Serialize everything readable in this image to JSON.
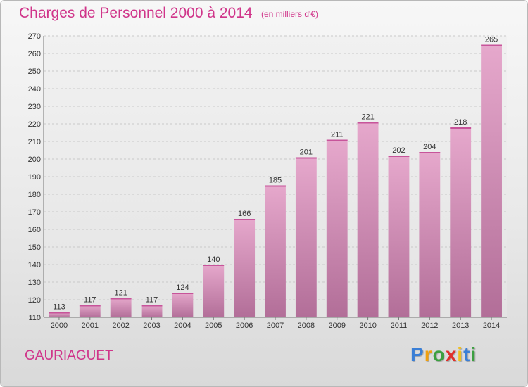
{
  "header": {
    "title": "Charges de Personnel 2000 à 2014",
    "subtitle": "(en milliers d'€)"
  },
  "footer": {
    "commune": "GAURIAGUET",
    "brand": [
      "P",
      "r",
      "o",
      "x",
      "i",
      "t",
      "i"
    ],
    "brand_colors": [
      "#3a7fd6",
      "#f0a010",
      "#3ca040",
      "#e0302a",
      "#f0c020",
      "#3a7fd6",
      "#3ca040"
    ]
  },
  "colors": {
    "bar_top": "#e6a8cc",
    "bar_bottom": "#b26e98",
    "accent": "#d0358a"
  },
  "chart_data": {
    "type": "bar",
    "categories": [
      "2000",
      "2001",
      "2002",
      "2003",
      "2004",
      "2005",
      "2006",
      "2007",
      "2008",
      "2009",
      "2010",
      "2011",
      "2012",
      "2013",
      "2014"
    ],
    "values": [
      113,
      117,
      121,
      117,
      124,
      140,
      166,
      185,
      201,
      211,
      221,
      202,
      204,
      218,
      265
    ],
    "title": "Charges de Personnel 2000 à 2014",
    "xlabel": "",
    "ylabel": "",
    "ylim": [
      110,
      270
    ],
    "yticks": [
      110,
      120,
      130,
      140,
      150,
      160,
      170,
      180,
      190,
      200,
      210,
      220,
      230,
      240,
      250,
      260,
      270
    ],
    "grid": true,
    "data_labels": true
  }
}
